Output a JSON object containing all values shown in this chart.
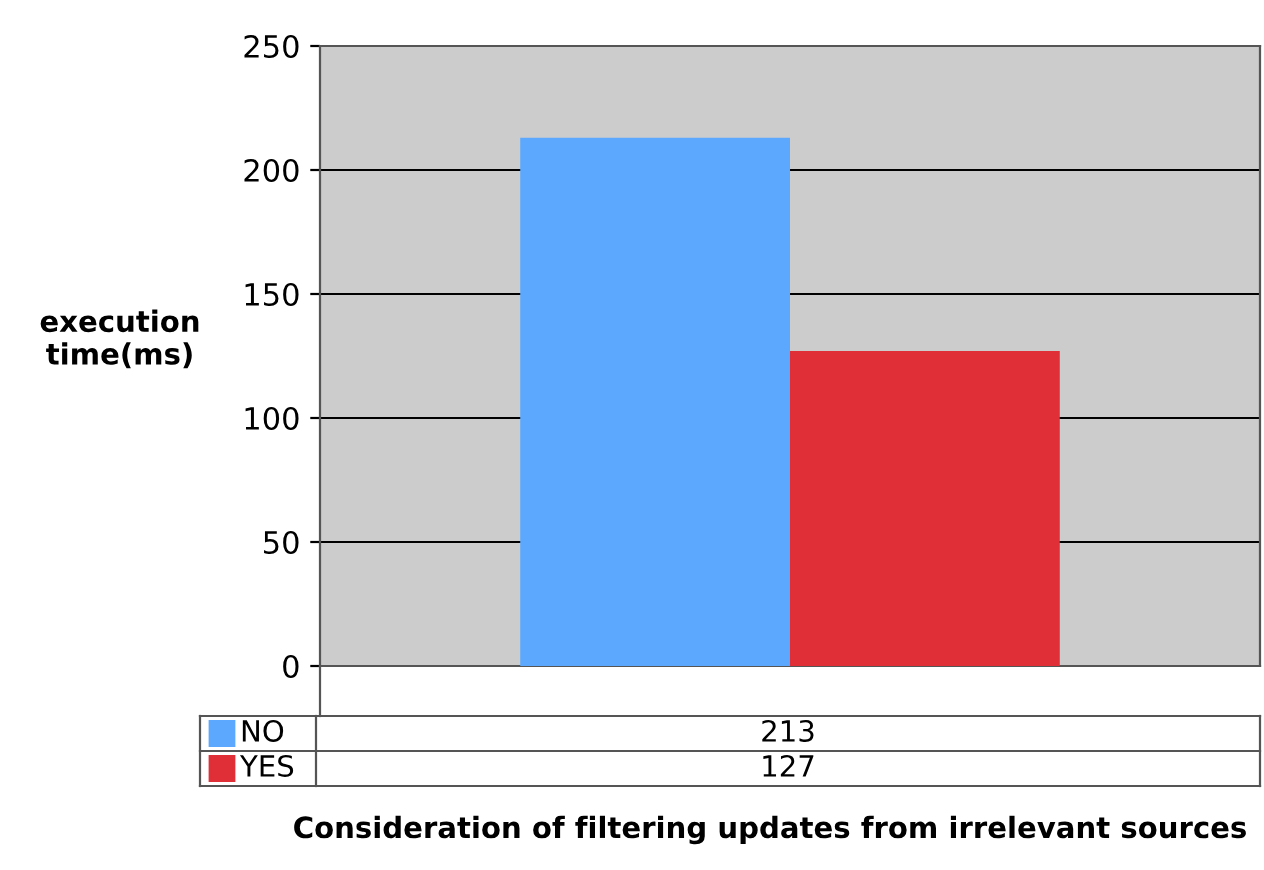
{
  "chart_data": {
    "type": "bar",
    "categories": [
      null
    ],
    "xlabel": "Consideration of filtering updates from irrelevant sources",
    "ylabel": "execution\ntime(ms)",
    "series": [
      {
        "name": "NO",
        "color": "#5ca8ff",
        "values": [
          213
        ]
      },
      {
        "name": "YES",
        "color": "#e02f36",
        "values": [
          127
        ]
      }
    ],
    "ylim": [
      0,
      250
    ],
    "yticks": [
      0,
      50,
      100,
      150,
      200,
      250
    ],
    "grid": "y",
    "legend": "bottom",
    "data_labels": true
  }
}
